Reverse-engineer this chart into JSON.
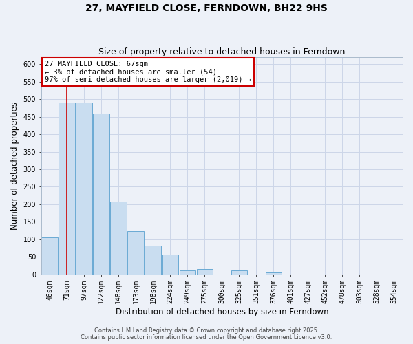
{
  "title": "27, MAYFIELD CLOSE, FERNDOWN, BH22 9HS",
  "subtitle": "Size of property relative to detached houses in Ferndown",
  "xlabel": "Distribution of detached houses by size in Ferndown",
  "ylabel": "Number of detached properties",
  "footer_line1": "Contains HM Land Registry data © Crown copyright and database right 2025.",
  "footer_line2": "Contains public sector information licensed under the Open Government Licence v3.0.",
  "categories": [
    "46sqm",
    "71sqm",
    "97sqm",
    "122sqm",
    "148sqm",
    "173sqm",
    "198sqm",
    "224sqm",
    "249sqm",
    "275sqm",
    "300sqm",
    "325sqm",
    "351sqm",
    "376sqm",
    "401sqm",
    "427sqm",
    "452sqm",
    "478sqm",
    "503sqm",
    "528sqm",
    "554sqm"
  ],
  "values": [
    105,
    490,
    490,
    460,
    207,
    122,
    82,
    57,
    10,
    15,
    0,
    10,
    0,
    5,
    0,
    0,
    0,
    0,
    0,
    0,
    0
  ],
  "bar_color": "#c9ddf0",
  "bar_edge_color": "#6aaad4",
  "grid_color": "#ccd6e8",
  "background_color": "#edf1f8",
  "vline_x": 1,
  "vline_color": "#cc0000",
  "annotation_line1": "27 MAYFIELD CLOSE: 67sqm",
  "annotation_line2": "← 3% of detached houses are smaller (54)",
  "annotation_line3": "97% of semi-detached houses are larger (2,019) →",
  "annotation_box_color": "#cc0000",
  "ylim": [
    0,
    620
  ],
  "yticks": [
    0,
    50,
    100,
    150,
    200,
    250,
    300,
    350,
    400,
    450,
    500,
    550,
    600
  ],
  "title_fontsize": 10,
  "subtitle_fontsize": 9,
  "axis_label_fontsize": 8.5,
  "tick_fontsize": 7,
  "annotation_fontsize": 7.5,
  "footer_fontsize": 6
}
